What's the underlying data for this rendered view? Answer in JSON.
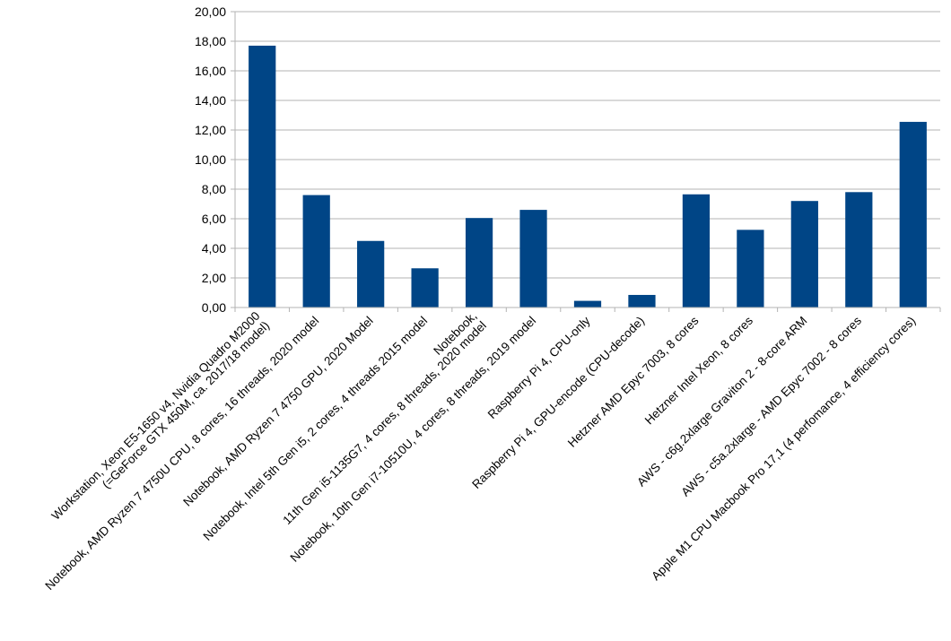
{
  "chart_data": {
    "type": "bar",
    "title": "",
    "xlabel": "",
    "ylabel": "",
    "ylim": [
      0,
      20
    ],
    "ytick_step": 2,
    "ytick_labels": [
      "0,00",
      "2,00",
      "4,00",
      "6,00",
      "8,00",
      "10,00",
      "12,00",
      "14,00",
      "16,00",
      "18,00",
      "20,00"
    ],
    "grid": true,
    "legend": "none",
    "bar_color": "#004586",
    "categories": [
      [
        "Workstation, Xeon E5-1650 v4, Nvidia Quadro M2000",
        "(=GeForce GTX 450M, ca. 2017/18 model)"
      ],
      [
        "Notebook, AMD Ryzen 7 4750U CPU, 8 cores, 16 threads, 2020 model"
      ],
      [
        "Notebook, AMD Ryzen 7 4750 GPU, 2020 Model"
      ],
      [
        "Notebook, Intel 5th Gen i5, 2 cores, 4 threads 2015 model"
      ],
      [
        "Notebook,",
        "11th Gen i5-1135G7, 4 cores, 8 threads, 2020 model"
      ],
      [
        "Notebook, 10th Gen i7-10510U, 4 cores, 8 threads, 2019 model"
      ],
      [
        "Raspberry Pi 4, CPU-only"
      ],
      [
        "Raspberry Pi 4, GPU-encode (CPU-decode)"
      ],
      [
        "Hetzner AMD Epyc 7003, 8 cores"
      ],
      [
        "Hetzner Intel Xeon, 8 cores"
      ],
      [
        "AWS - c6g.2xlarge Graviton 2 - 8-core ARM"
      ],
      [
        "AWS - c5a.2xlarge - AMD Epyc 7002 - 8 cores"
      ],
      [
        "Apple M1 CPU Macbook Pro 17,1 (4 perfomance, 4 efficiency cores)"
      ]
    ],
    "values": [
      17.7,
      7.6,
      4.5,
      2.65,
      6.05,
      6.6,
      0.45,
      0.85,
      7.65,
      5.25,
      7.2,
      7.8,
      12.55
    ]
  }
}
